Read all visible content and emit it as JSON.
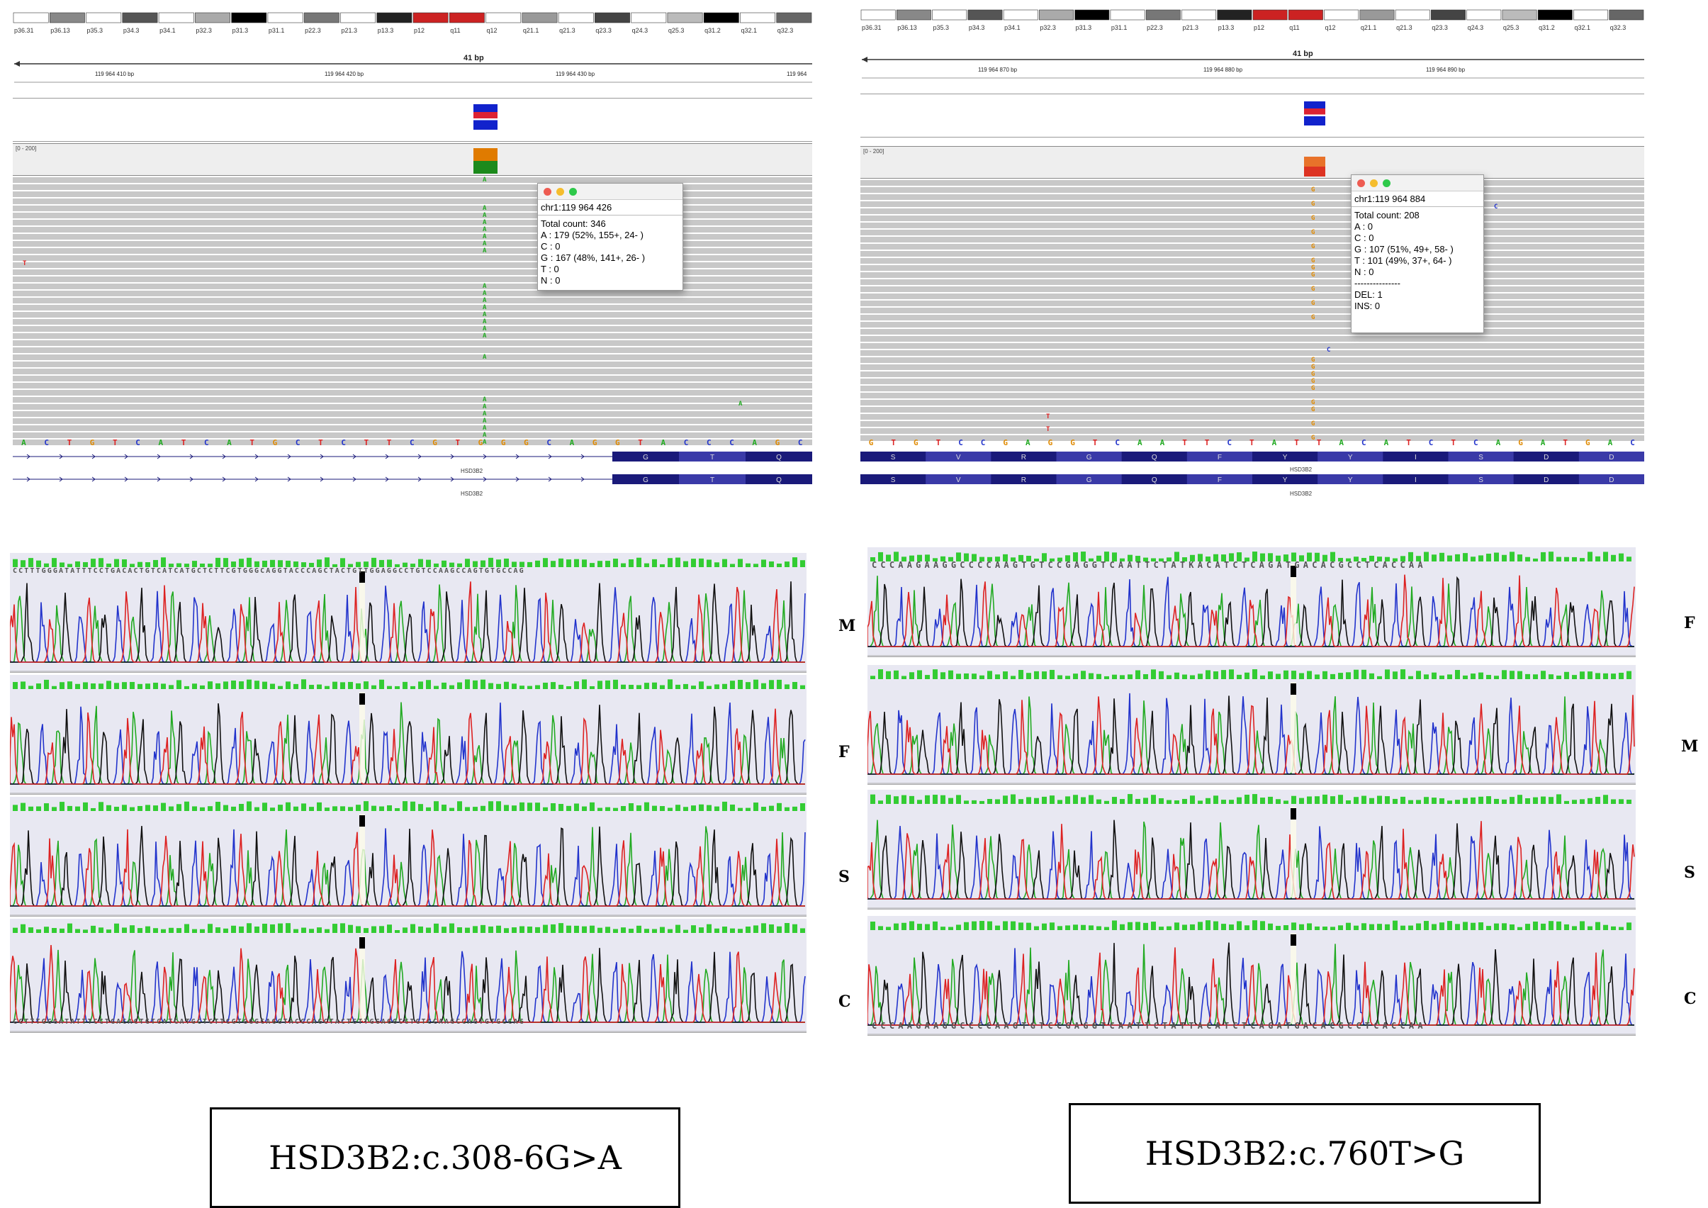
{
  "igv_left": {
    "cytobands": [
      "p36.31",
      "p36.13",
      "p35.3",
      "p34.3",
      "p34.1",
      "p32.3",
      "p31.3",
      "p31.1",
      "p22.3",
      "p21.3",
      "p13.3",
      "p12",
      "q11",
      "q12",
      "q21.1",
      "q21.3",
      "q23.3",
      "q24.3",
      "q25.3",
      "q31.2",
      "q32.1",
      "q32.3"
    ],
    "window_size": "41 bp",
    "ruler_positions": [
      "119 964 410 bp",
      "119 964 420 bp",
      "119 964 430 bp",
      "119 964"
    ],
    "coverage_range": "[0 - 200]",
    "mismatch_outside": "T",
    "mismatch_col": "A",
    "reference_sequence": [
      "A",
      "C",
      "T",
      "G",
      "T",
      "C",
      "A",
      "T",
      "C",
      "A",
      "T",
      "G",
      "C",
      "T",
      "C",
      "T",
      "T",
      "C",
      "G",
      "T",
      "G",
      "G",
      "G",
      "C",
      "A",
      "G",
      "G",
      "T",
      "A",
      "C",
      "C",
      "C",
      "A",
      "G",
      "C"
    ],
    "gene_name": "HSD3B2",
    "amino_acids": [
      "G",
      "T",
      "Q"
    ],
    "popup": {
      "title": "chr1:119 964 426",
      "lines": [
        "Total count: 346",
        "A : 179 (52%, 155+, 24- )",
        "C : 0",
        "G : 167 (48%, 141+, 26- )",
        "T : 0",
        "N : 0"
      ]
    }
  },
  "igv_right": {
    "cytobands": [
      "p36.31",
      "p36.13",
      "p35.3",
      "p34.3",
      "p34.1",
      "p32.3",
      "p31.3",
      "p31.1",
      "p22.3",
      "p21.3",
      "p13.3",
      "p12",
      "q11",
      "q12",
      "q21.1",
      "q21.3",
      "q23.3",
      "q24.3",
      "q25.3",
      "q31.2",
      "q32.1",
      "q32.3"
    ],
    "window_size": "41 bp",
    "ruler_positions": [
      "119 964 870 bp",
      "119 964 880 bp",
      "119 964 890 bp"
    ],
    "coverage_range": "[0 - 200]",
    "mismatch_col": "G",
    "mismatch_other_t": "T",
    "mismatch_other_c": "C",
    "reference_sequence": [
      "G",
      "T",
      "G",
      "T",
      "C",
      "C",
      "G",
      "A",
      "G",
      "G",
      "T",
      "C",
      "A",
      "A",
      "T",
      "T",
      "C",
      "T",
      "A",
      "T",
      "T",
      "A",
      "C",
      "A",
      "T",
      "C",
      "T",
      "C",
      "A",
      "G",
      "A",
      "T",
      "G",
      "A",
      "C"
    ],
    "gene_name": "HSD3B2",
    "amino_acids": [
      "S",
      "V",
      "R",
      "G",
      "Q",
      "F",
      "Y",
      "Y",
      "I",
      "S",
      "D",
      "D"
    ],
    "popup": {
      "title": "chr1:119 964 884",
      "lines": [
        "Total count: 208",
        "A : 0",
        "C : 0",
        "G : 107 (51%, 49+, 58- )",
        "T : 101 (49%, 37+, 64- )",
        "N : 0",
        "---------------",
        "DEL: 1",
        "INS: 0"
      ]
    }
  },
  "chromatograms_left": {
    "labels": [
      "M",
      "F",
      "S",
      "C"
    ],
    "sequence_top": "CCTTTGGGATATTTCCTGACACTGTCATCATGCTCTTCGTGGGCAGGTACCCAGCTACTGTTGGAGGCCTGTCCAAGCCAGTGTGCCAG",
    "sequence_bottom": "CCTTTGGGATATTTCCTGACACTGTCATCATGCTCTTCGTGGGCAGGTACCCAGCTACTGTTGGAGGCCTGTCCAAGCCAGTGTGCCAG"
  },
  "chromatograms_right": {
    "labels": [
      "F",
      "M",
      "S",
      "C"
    ],
    "sequence_top": "CCCAAGAAGGCCCCAAGTGTCCGAGGTCAATTCTATKACATCTCAGATGACACGCCTCACCAA",
    "sequence_bottom": "CCCAAGAAGGCCCCAAGTGTCCGAGGTCAATTCTATTACATCTCAGATGACACGCCTCACCAA"
  },
  "captions": {
    "left": "HSD3B2:c.308-6G>A",
    "right": "HSD3B2:c.760T>G"
  },
  "colors": {
    "A": "#22aa22",
    "C": "#2233cc",
    "G": "#e08a00",
    "T": "#dd2222",
    "read": "#c8c8c8",
    "gene_exon": "#1a1a7a"
  }
}
